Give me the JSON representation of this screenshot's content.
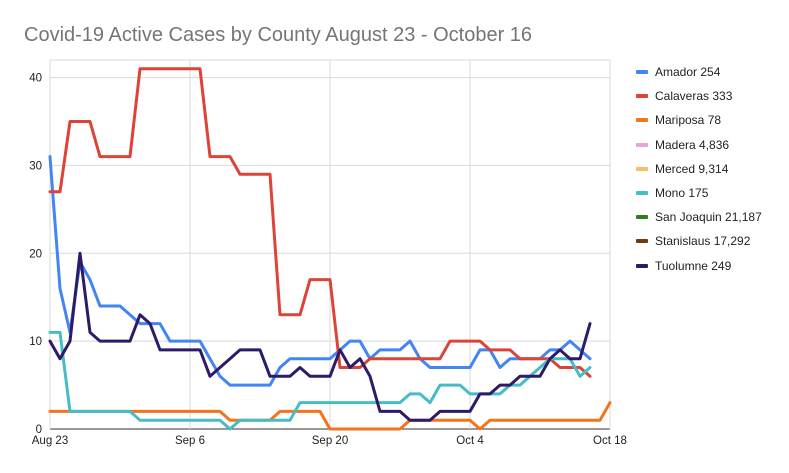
{
  "chart_data": {
    "type": "line",
    "title": "Covid-19 Active Cases by County August 23 - October 16",
    "xlabel": "",
    "ylabel": "",
    "x_tick_labels": [
      "Aug 23",
      "Sep 6",
      "Sep 20",
      "Oct 4",
      "Oct 18"
    ],
    "x_tick_days": [
      0,
      14,
      28,
      42,
      56
    ],
    "y_ticks": [
      0,
      10,
      20,
      30,
      40
    ],
    "ylim": [
      0,
      42
    ],
    "xlim_days": [
      0,
      56
    ],
    "grid": true,
    "legend_position": "right",
    "series": [
      {
        "name": "Amador 254",
        "color": "#4285f4",
        "points": [
          [
            0,
            31
          ],
          [
            1,
            16
          ],
          [
            2,
            11
          ],
          [
            3,
            19
          ],
          [
            4,
            17
          ],
          [
            5,
            14
          ],
          [
            6,
            14
          ],
          [
            7,
            14
          ],
          [
            8,
            13
          ],
          [
            9,
            12
          ],
          [
            10,
            12
          ],
          [
            11,
            12
          ],
          [
            12,
            10
          ],
          [
            13,
            10
          ],
          [
            14,
            10
          ],
          [
            15,
            10
          ],
          [
            16,
            8
          ],
          [
            17,
            6
          ],
          [
            18,
            5
          ],
          [
            19,
            5
          ],
          [
            20,
            5
          ],
          [
            21,
            5
          ],
          [
            22,
            5
          ],
          [
            23,
            7
          ],
          [
            24,
            8
          ],
          [
            25,
            8
          ],
          [
            26,
            8
          ],
          [
            27,
            8
          ],
          [
            28,
            8
          ],
          [
            29,
            9
          ],
          [
            30,
            10
          ],
          [
            31,
            10
          ],
          [
            32,
            8
          ],
          [
            33,
            9
          ],
          [
            34,
            9
          ],
          [
            35,
            9
          ],
          [
            36,
            10
          ],
          [
            37,
            8
          ],
          [
            38,
            7
          ],
          [
            39,
            7
          ],
          [
            40,
            7
          ],
          [
            41,
            7
          ],
          [
            42,
            7
          ],
          [
            43,
            9
          ],
          [
            44,
            9
          ],
          [
            45,
            7
          ],
          [
            46,
            8
          ],
          [
            47,
            8
          ],
          [
            48,
            8
          ],
          [
            49,
            8
          ],
          [
            50,
            9
          ],
          [
            51,
            9
          ],
          [
            52,
            10
          ],
          [
            53,
            9
          ],
          [
            54,
            8
          ]
        ]
      },
      {
        "name": "Calaveras 333",
        "color": "#db4437",
        "points": [
          [
            0,
            27
          ],
          [
            1,
            27
          ],
          [
            2,
            35
          ],
          [
            3,
            35
          ],
          [
            4,
            35
          ],
          [
            5,
            31
          ],
          [
            6,
            31
          ],
          [
            7,
            31
          ],
          [
            8,
            31
          ],
          [
            9,
            41
          ],
          [
            10,
            41
          ],
          [
            11,
            41
          ],
          [
            12,
            41
          ],
          [
            13,
            41
          ],
          [
            14,
            41
          ],
          [
            15,
            41
          ],
          [
            16,
            31
          ],
          [
            17,
            31
          ],
          [
            18,
            31
          ],
          [
            19,
            29
          ],
          [
            20,
            29
          ],
          [
            21,
            29
          ],
          [
            22,
            29
          ],
          [
            23,
            13
          ],
          [
            24,
            13
          ],
          [
            25,
            13
          ],
          [
            26,
            17
          ],
          [
            27,
            17
          ],
          [
            28,
            17
          ],
          [
            29,
            7
          ],
          [
            30,
            7
          ],
          [
            31,
            7
          ],
          [
            32,
            8
          ],
          [
            33,
            8
          ],
          [
            34,
            8
          ],
          [
            35,
            8
          ],
          [
            36,
            8
          ],
          [
            37,
            8
          ],
          [
            38,
            8
          ],
          [
            39,
            8
          ],
          [
            40,
            10
          ],
          [
            41,
            10
          ],
          [
            42,
            10
          ],
          [
            43,
            10
          ],
          [
            44,
            9
          ],
          [
            45,
            9
          ],
          [
            46,
            9
          ],
          [
            47,
            8
          ],
          [
            48,
            8
          ],
          [
            49,
            8
          ],
          [
            50,
            8
          ],
          [
            51,
            7
          ],
          [
            52,
            7
          ],
          [
            53,
            7
          ],
          [
            54,
            6
          ]
        ]
      },
      {
        "name": "Mariposa 78",
        "color": "#f4731d",
        "points": [
          [
            0,
            2
          ],
          [
            1,
            2
          ],
          [
            2,
            2
          ],
          [
            3,
            2
          ],
          [
            4,
            2
          ],
          [
            5,
            2
          ],
          [
            6,
            2
          ],
          [
            7,
            2
          ],
          [
            8,
            2
          ],
          [
            9,
            2
          ],
          [
            10,
            2
          ],
          [
            11,
            2
          ],
          [
            12,
            2
          ],
          [
            13,
            2
          ],
          [
            14,
            2
          ],
          [
            15,
            2
          ],
          [
            16,
            2
          ],
          [
            17,
            2
          ],
          [
            18,
            1
          ],
          [
            19,
            1
          ],
          [
            20,
            1
          ],
          [
            21,
            1
          ],
          [
            22,
            1
          ],
          [
            23,
            2
          ],
          [
            24,
            2
          ],
          [
            25,
            2
          ],
          [
            26,
            2
          ],
          [
            27,
            2
          ],
          [
            28,
            0
          ],
          [
            29,
            0
          ],
          [
            30,
            0
          ],
          [
            31,
            0
          ],
          [
            32,
            0
          ],
          [
            33,
            0
          ],
          [
            34,
            0
          ],
          [
            35,
            0
          ],
          [
            36,
            1
          ],
          [
            37,
            1
          ],
          [
            38,
            1
          ],
          [
            39,
            1
          ],
          [
            40,
            1
          ],
          [
            41,
            1
          ],
          [
            42,
            1
          ],
          [
            43,
            0
          ],
          [
            44,
            1
          ],
          [
            45,
            1
          ],
          [
            46,
            1
          ],
          [
            47,
            1
          ],
          [
            48,
            1
          ],
          [
            49,
            1
          ],
          [
            50,
            1
          ],
          [
            51,
            1
          ],
          [
            52,
            1
          ],
          [
            53,
            1
          ],
          [
            54,
            1
          ],
          [
            55,
            1
          ],
          [
            56,
            3
          ]
        ]
      },
      {
        "name": "Madera 4,836",
        "color": "#e8a3d8",
        "points": []
      },
      {
        "name": "Merced 9,314",
        "color": "#fbbc6b",
        "points": []
      },
      {
        "name": "Mono 175",
        "color": "#46bdc6",
        "points": [
          [
            0,
            11
          ],
          [
            1,
            11
          ],
          [
            2,
            2
          ],
          [
            3,
            2
          ],
          [
            4,
            2
          ],
          [
            5,
            2
          ],
          [
            6,
            2
          ],
          [
            7,
            2
          ],
          [
            8,
            2
          ],
          [
            9,
            1
          ],
          [
            10,
            1
          ],
          [
            11,
            1
          ],
          [
            12,
            1
          ],
          [
            13,
            1
          ],
          [
            14,
            1
          ],
          [
            15,
            1
          ],
          [
            16,
            1
          ],
          [
            17,
            1
          ],
          [
            18,
            0
          ],
          [
            19,
            1
          ],
          [
            20,
            1
          ],
          [
            21,
            1
          ],
          [
            22,
            1
          ],
          [
            23,
            1
          ],
          [
            24,
            1
          ],
          [
            25,
            3
          ],
          [
            26,
            3
          ],
          [
            27,
            3
          ],
          [
            28,
            3
          ],
          [
            29,
            3
          ],
          [
            30,
            3
          ],
          [
            31,
            3
          ],
          [
            32,
            3
          ],
          [
            33,
            3
          ],
          [
            34,
            3
          ],
          [
            35,
            3
          ],
          [
            36,
            4
          ],
          [
            37,
            4
          ],
          [
            38,
            3
          ],
          [
            39,
            5
          ],
          [
            40,
            5
          ],
          [
            41,
            5
          ],
          [
            42,
            4
          ],
          [
            43,
            4
          ],
          [
            44,
            4
          ],
          [
            45,
            4
          ],
          [
            46,
            5
          ],
          [
            47,
            5
          ],
          [
            48,
            6
          ],
          [
            49,
            7
          ],
          [
            50,
            8
          ],
          [
            51,
            8
          ],
          [
            52,
            8
          ],
          [
            53,
            6
          ],
          [
            54,
            7
          ]
        ]
      },
      {
        "name": "San Joaquin 21,187",
        "color": "#2e7d1f",
        "points": []
      },
      {
        "name": "Stanislaus 17,292",
        "color": "#6d3b0f",
        "points": []
      },
      {
        "name": "Tuolumne 249",
        "color": "#2d1b69",
        "points": [
          [
            0,
            10
          ],
          [
            1,
            8
          ],
          [
            2,
            10
          ],
          [
            3,
            20
          ],
          [
            4,
            11
          ],
          [
            5,
            10
          ],
          [
            6,
            10
          ],
          [
            7,
            10
          ],
          [
            8,
            10
          ],
          [
            9,
            13
          ],
          [
            10,
            12
          ],
          [
            11,
            9
          ],
          [
            12,
            9
          ],
          [
            13,
            9
          ],
          [
            14,
            9
          ],
          [
            15,
            9
          ],
          [
            16,
            6
          ],
          [
            17,
            7
          ],
          [
            18,
            8
          ],
          [
            19,
            9
          ],
          [
            20,
            9
          ],
          [
            21,
            9
          ],
          [
            22,
            6
          ],
          [
            23,
            6
          ],
          [
            24,
            6
          ],
          [
            25,
            7
          ],
          [
            26,
            6
          ],
          [
            27,
            6
          ],
          [
            28,
            6
          ],
          [
            29,
            9
          ],
          [
            30,
            7
          ],
          [
            31,
            8
          ],
          [
            32,
            6
          ],
          [
            33,
            2
          ],
          [
            34,
            2
          ],
          [
            35,
            2
          ],
          [
            36,
            1
          ],
          [
            37,
            1
          ],
          [
            38,
            1
          ],
          [
            39,
            2
          ],
          [
            40,
            2
          ],
          [
            41,
            2
          ],
          [
            42,
            2
          ],
          [
            43,
            4
          ],
          [
            44,
            4
          ],
          [
            45,
            5
          ],
          [
            46,
            5
          ],
          [
            47,
            6
          ],
          [
            48,
            6
          ],
          [
            49,
            6
          ],
          [
            50,
            8
          ],
          [
            51,
            9
          ],
          [
            52,
            8
          ],
          [
            53,
            8
          ],
          [
            54,
            12
          ]
        ]
      }
    ]
  }
}
